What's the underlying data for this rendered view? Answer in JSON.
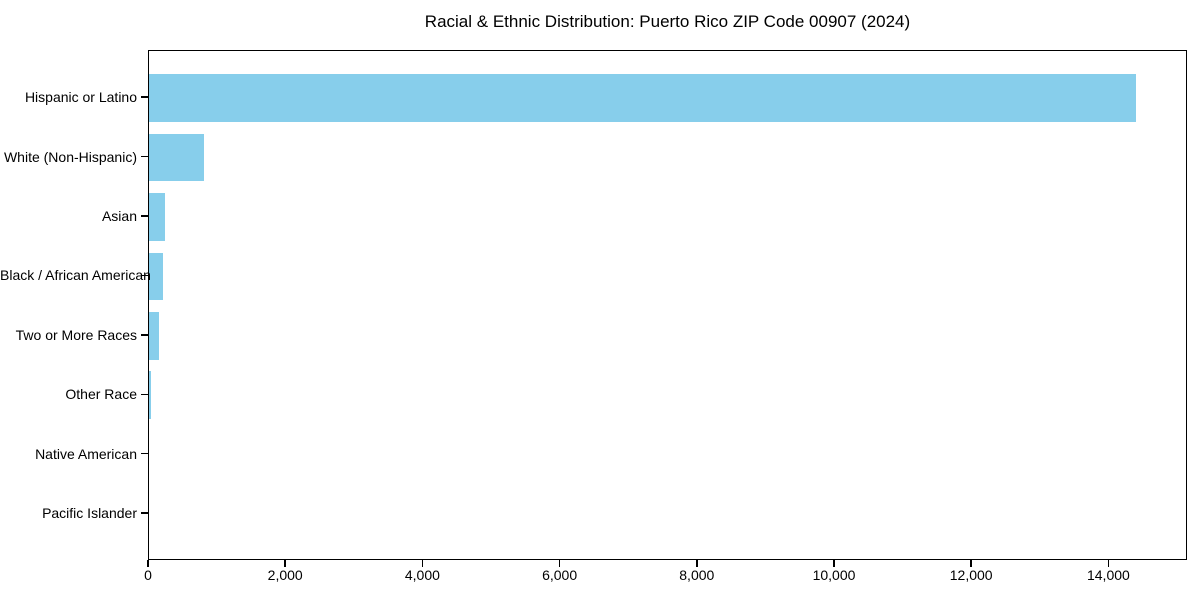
{
  "chart_data": {
    "type": "bar",
    "orientation": "horizontal",
    "title": "Racial & Ethnic Distribution: Puerto Rico ZIP Code 00907 (2024)",
    "categories": [
      "Hispanic or Latino",
      "White (Non-Hispanic)",
      "Asian",
      "Black / African American",
      "Two or More Races",
      "Other Race",
      "Native American",
      "Pacific Islander"
    ],
    "values": [
      14420,
      800,
      240,
      200,
      150,
      25,
      0,
      0
    ],
    "xlabel": "",
    "ylabel": "",
    "xlim": [
      0,
      15146
    ],
    "xticks": [
      0,
      2000,
      4000,
      6000,
      8000,
      10000,
      12000,
      14000
    ],
    "xtick_labels": [
      "0",
      "2,000",
      "4,000",
      "6,000",
      "8,000",
      "10,000",
      "12,000",
      "14,000"
    ],
    "bar_color": "#87CEEB",
    "spine_color": "#000000",
    "text_color": "#000000",
    "background_color": "#ffffff",
    "grid": false,
    "legend": false
  }
}
